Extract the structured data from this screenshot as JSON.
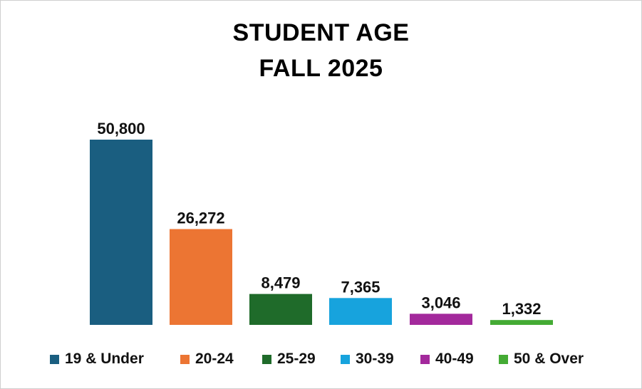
{
  "chart_data": {
    "type": "bar",
    "title": [
      "STUDENT AGE",
      "FALL 2025"
    ],
    "categories": [
      "19 & Under",
      "20-24",
      "25-29",
      "30-39",
      "40-49",
      "50 & Over"
    ],
    "values": [
      50800,
      26272,
      8479,
      7365,
      3046,
      1332
    ],
    "data_labels": [
      "50,800",
      "26,272",
      "8,479",
      "7,365",
      "3,046",
      "1,332"
    ],
    "colors": [
      "#1a5e80",
      "#ec7533",
      "#1f6b2a",
      "#17a3dd",
      "#a3299c",
      "#44ab34"
    ],
    "legend": "bottom",
    "grid": false,
    "ylim": [
      0,
      50800
    ]
  }
}
